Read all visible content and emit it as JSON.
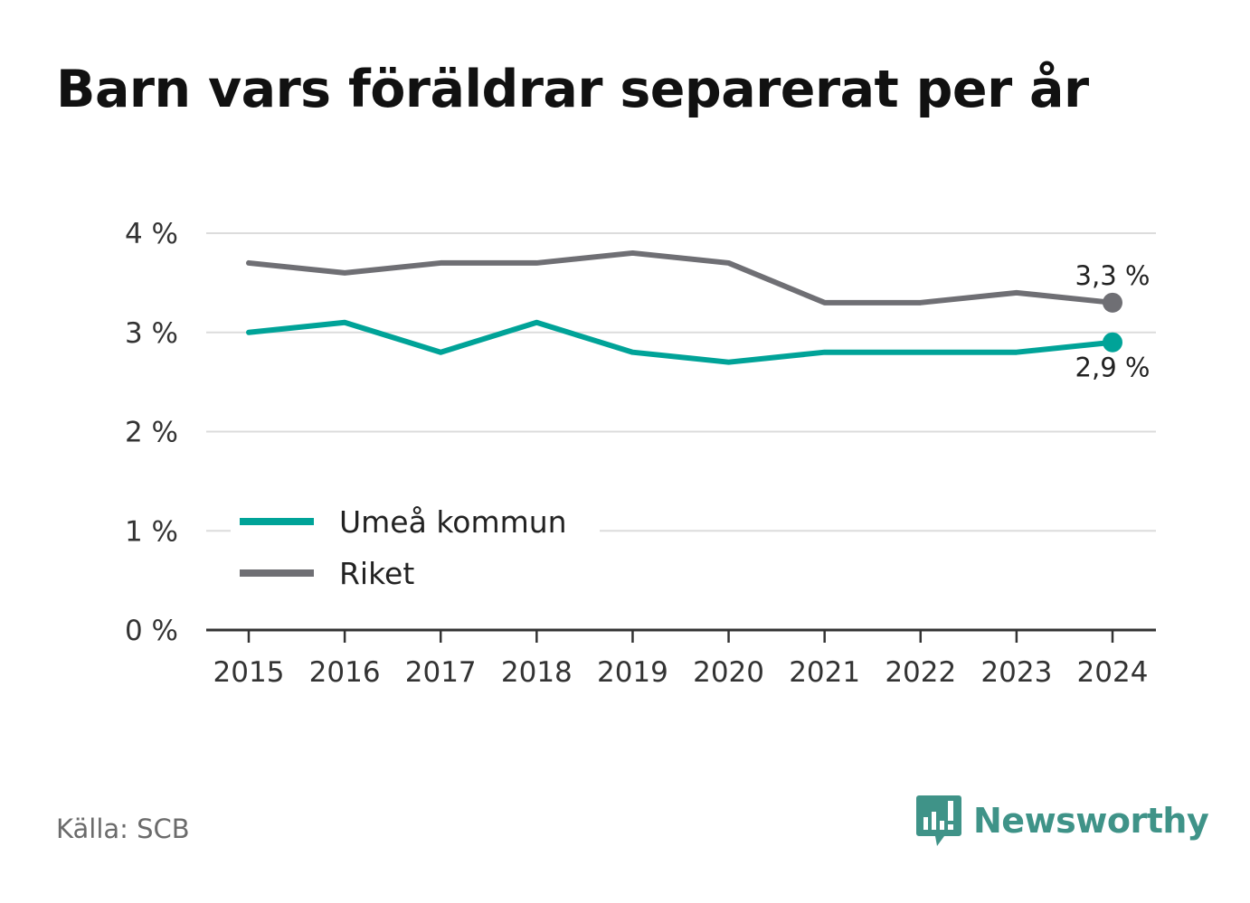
{
  "title": "Barn vars föräldrar separerat per år",
  "source": "Källa: SCB",
  "brand": {
    "name": "Newsworthy",
    "icon": "bar-chart-speech-bubble-icon",
    "color": "#3f9388"
  },
  "chart_data": {
    "type": "line",
    "title": "Barn vars föräldrar separerat per år",
    "x": [
      "2015",
      "2016",
      "2017",
      "2018",
      "2019",
      "2020",
      "2021",
      "2022",
      "2023",
      "2024"
    ],
    "ylim": [
      0,
      4
    ],
    "yticks": [
      0,
      1,
      2,
      3,
      4
    ],
    "ytick_labels": [
      "0 %",
      "1 %",
      "2 %",
      "3 %",
      "4 %"
    ],
    "grid": true,
    "legend_position": "left",
    "series": [
      {
        "name": "Umeå kommun",
        "color": "#00a398",
        "values": [
          3.0,
          3.1,
          2.8,
          3.1,
          2.8,
          2.7,
          2.8,
          2.8,
          2.8,
          2.9
        ],
        "end_label": "2,9 %"
      },
      {
        "name": "Riket",
        "color": "#6f6f74",
        "values": [
          3.7,
          3.6,
          3.7,
          3.7,
          3.8,
          3.7,
          3.3,
          3.3,
          3.4,
          3.3
        ],
        "end_label": "3,3 %"
      }
    ]
  }
}
